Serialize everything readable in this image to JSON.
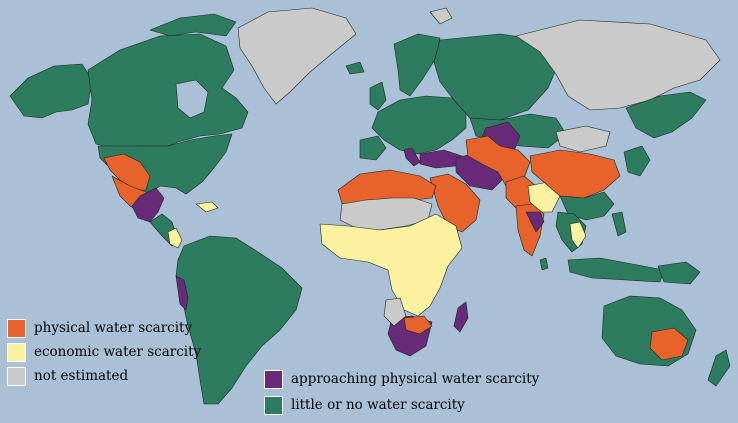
{
  "map": {
    "ocean_color": "#a9c0d6",
    "categories": [
      {
        "id": "physical",
        "label": "physical water scarcity",
        "color": "#e8622c"
      },
      {
        "id": "economic",
        "label": "economic water scarcity",
        "color": "#fbf1a0"
      },
      {
        "id": "not_estimated",
        "label": "not estimated",
        "color": "#cacaca"
      },
      {
        "id": "approaching",
        "label": "approaching physical water scarcity",
        "color": "#6a2a7a"
      },
      {
        "id": "little",
        "label": "little or no water scarcity",
        "color": "#2d7c60"
      }
    ]
  },
  "legend": {
    "left": [
      {
        "label": "physical water scarcity",
        "color": "#e8622c"
      },
      {
        "label": "economic water scarcity",
        "color": "#fbf1a0"
      },
      {
        "label": "not estimated",
        "color": "#cacaca"
      }
    ],
    "right": [
      {
        "label": "approaching physical water scarcity",
        "color": "#6a2a7a"
      },
      {
        "label": "little or no water scarcity",
        "color": "#2d7c60"
      }
    ]
  }
}
